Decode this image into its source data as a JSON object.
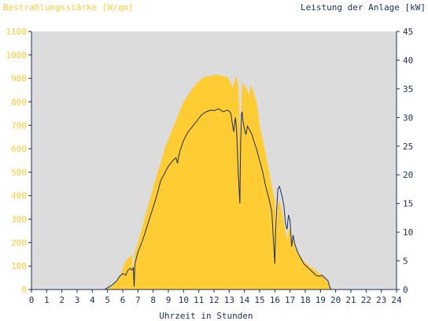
{
  "chart_data": {
    "type": "area",
    "title_left": "Bestrahlungsstärke [W/qm]",
    "title_right": "Leistung der Anlage [kW]",
    "xlabel": "Uhrzeit in Stunden",
    "x_ticks": [
      "0",
      "1",
      "2",
      "3",
      "4",
      "5",
      "6",
      "7",
      "8",
      "9",
      "10",
      "11",
      "12",
      "13",
      "14",
      "15",
      "16",
      "17",
      "18",
      "19",
      "20",
      "21",
      "22",
      "23",
      "24"
    ],
    "xlim": [
      0,
      24
    ],
    "y_left_ticks": [
      "0",
      "100",
      "200",
      "300",
      "400",
      "500",
      "600",
      "700",
      "800",
      "900",
      "1000",
      "1100"
    ],
    "ylim_left": [
      0,
      1100
    ],
    "y_right_ticks": [
      "0",
      "5",
      "10",
      "15",
      "20",
      "25",
      "30",
      "35",
      "40",
      "45"
    ],
    "ylim_right": [
      0,
      45
    ],
    "grid": false,
    "colors": {
      "plot_background": "#dcdcdc",
      "irradiance_fill": "#ffcc33",
      "power_line": "#1a2e5a",
      "left_axis_text": "#ffcc33",
      "right_axis_text": "#1a2e5a",
      "axis_line": "#1a2e5a"
    },
    "series": [
      {
        "axis": "left",
        "style": "area",
        "x": [
          4.8,
          5.0,
          5.3,
          5.6,
          5.9,
          6.1,
          6.3,
          6.5,
          6.6,
          6.7,
          6.75,
          6.8,
          7.0,
          7.3,
          7.6,
          7.9,
          8.2,
          8.5,
          8.8,
          9.0,
          9.3,
          9.5,
          9.8,
          10.0,
          10.3,
          10.6,
          10.9,
          11.2,
          11.5,
          11.8,
          12.0,
          12.3,
          12.6,
          12.9,
          13.1,
          13.2,
          13.3,
          13.4,
          13.5,
          13.6,
          13.7,
          13.75,
          13.8,
          13.85,
          13.9,
          14.0,
          14.1,
          14.2,
          14.3,
          14.4,
          14.5,
          14.6,
          14.7,
          14.8,
          15.0,
          15.2,
          15.4,
          15.6,
          15.8,
          16.0,
          16.05,
          16.1,
          16.2,
          16.3,
          16.4,
          16.5,
          16.6,
          16.7,
          16.8,
          16.9,
          17.0,
          17.1,
          17.2,
          17.3,
          17.5,
          17.7,
          17.9,
          18.1,
          18.3,
          18.5,
          18.7,
          18.9,
          19.1,
          19.3,
          19.5,
          19.6,
          19.7,
          19.8
        ],
        "values": [
          0,
          5,
          15,
          35,
          70,
          110,
          130,
          140,
          150,
          60,
          120,
          160,
          200,
          270,
          340,
          410,
          480,
          540,
          610,
          640,
          690,
          720,
          770,
          800,
          830,
          860,
          880,
          900,
          910,
          910,
          915,
          915,
          910,
          905,
          880,
          860,
          870,
          900,
          910,
          860,
          700,
          500,
          800,
          870,
          880,
          870,
          860,
          850,
          820,
          870,
          860,
          840,
          820,
          800,
          700,
          640,
          580,
          510,
          440,
          380,
          300,
          250,
          370,
          380,
          350,
          320,
          280,
          250,
          210,
          260,
          250,
          200,
          220,
          180,
          160,
          140,
          120,
          110,
          100,
          90,
          80,
          70,
          60,
          45,
          30,
          10,
          0,
          0
        ]
      },
      {
        "axis": "right",
        "style": "line",
        "x": [
          4.8,
          5.0,
          5.3,
          5.6,
          5.8,
          6.0,
          6.2,
          6.3,
          6.4,
          6.5,
          6.6,
          6.7,
          6.75,
          6.8,
          7.0,
          7.3,
          7.6,
          7.9,
          8.2,
          8.5,
          8.8,
          9.0,
          9.3,
          9.5,
          9.6,
          9.7,
          9.8,
          10.0,
          10.3,
          10.6,
          10.9,
          11.2,
          11.5,
          11.8,
          12.0,
          12.3,
          12.6,
          12.9,
          13.1,
          13.2,
          13.3,
          13.4,
          13.45,
          13.5,
          13.6,
          13.7,
          13.72,
          13.75,
          13.8,
          13.85,
          13.9,
          14.0,
          14.1,
          14.2,
          14.3,
          14.4,
          14.5,
          14.6,
          14.8,
          15.0,
          15.2,
          15.4,
          15.6,
          15.8,
          16.0,
          16.05,
          16.1,
          16.2,
          16.3,
          16.4,
          16.5,
          16.6,
          16.7,
          16.8,
          16.9,
          17.0,
          17.1,
          17.2,
          17.3,
          17.5,
          17.7,
          17.9,
          18.1,
          18.3,
          18.5,
          18.7,
          18.9,
          19.1,
          19.3,
          19.5,
          19.6,
          19.7,
          19.8
        ],
        "values": [
          0,
          0.3,
          0.8,
          1.5,
          2.3,
          2.8,
          2.5,
          3.2,
          3.5,
          3.7,
          3.4,
          3.8,
          0.5,
          4.5,
          6.5,
          8.5,
          11.0,
          13.5,
          16.0,
          19.0,
          20.5,
          21.5,
          22.5,
          23.0,
          22.0,
          23.5,
          24.5,
          26.0,
          27.5,
          28.5,
          29.5,
          30.5,
          31.0,
          31.3,
          31.2,
          31.5,
          31.0,
          31.3,
          30.8,
          29.0,
          27.5,
          30.0,
          29.0,
          27.0,
          20.0,
          15.0,
          20.0,
          25.0,
          30.5,
          31.0,
          29.5,
          28.0,
          27.0,
          28.5,
          28.0,
          27.5,
          27.0,
          26.0,
          24.5,
          22.5,
          20.5,
          18.0,
          16.0,
          13.5,
          4.5,
          10.0,
          13.0,
          17.5,
          18.0,
          17.0,
          16.0,
          14.5,
          11.5,
          10.5,
          13.0,
          12.0,
          7.5,
          9.5,
          8.0,
          6.5,
          5.5,
          4.5,
          4.0,
          3.5,
          3.0,
          2.5,
          2.3,
          2.5,
          2.0,
          1.5,
          0.5,
          0,
          0
        ]
      }
    ]
  }
}
